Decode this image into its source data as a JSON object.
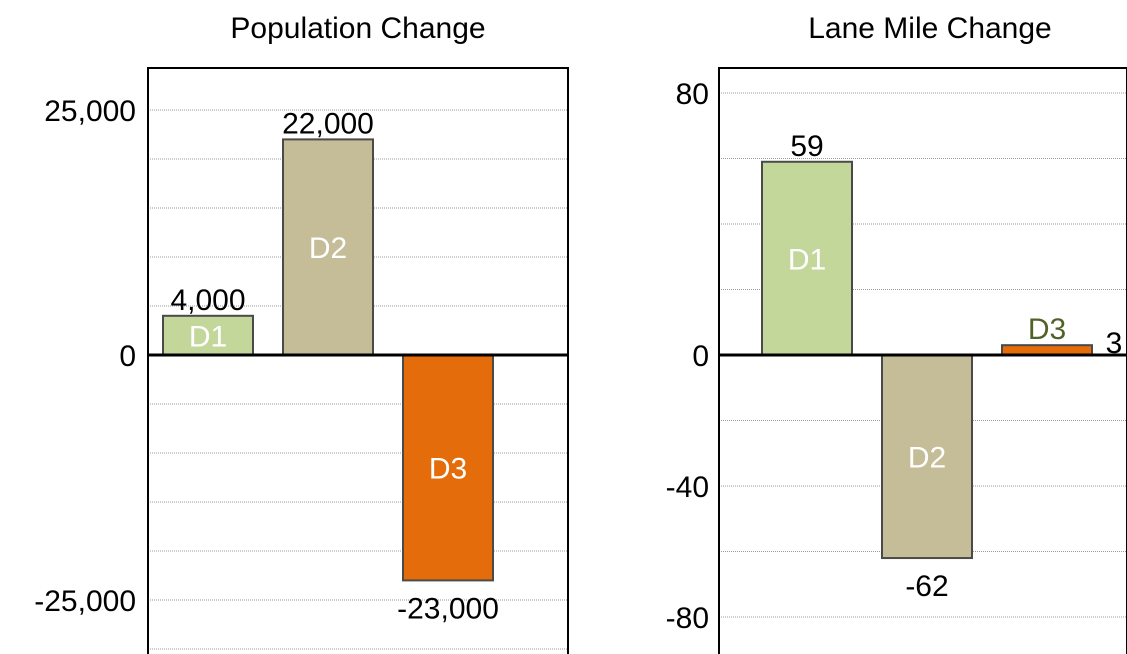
{
  "chart_data": [
    {
      "type": "bar",
      "title": "Population Change",
      "categories": [
        "D1",
        "D2",
        "D3"
      ],
      "values": [
        4000,
        22000,
        -23000
      ],
      "value_labels": [
        "4,000",
        "22,000",
        "-23,000"
      ],
      "ylim": [
        -30000,
        30000
      ],
      "yticks": [
        -25000,
        0,
        25000
      ],
      "ytick_labels": [
        "-25,000",
        "0",
        "25,000"
      ],
      "grid": true,
      "colors": [
        "#c4d79b",
        "#c4bd97",
        "#e46c0a"
      ],
      "category_label_colors": [
        "#ffffff",
        "#ffffff",
        "#ffffff"
      ]
    },
    {
      "type": "bar",
      "title": "Lane Mile Change",
      "categories": [
        "D1",
        "D2",
        "D3"
      ],
      "values": [
        59,
        -62,
        3
      ],
      "value_labels": [
        "59",
        "-62",
        "3"
      ],
      "ylim": [
        -90,
        90
      ],
      "yticks": [
        -80,
        -40,
        0,
        80
      ],
      "ytick_labels": [
        "-80",
        "-40",
        "0",
        "80"
      ],
      "grid": true,
      "colors": [
        "#c4d79b",
        "#c4bd97",
        "#e46c0a"
      ],
      "category_label_colors": [
        "#ffffff",
        "#ffffff",
        "#4f6228"
      ]
    }
  ]
}
